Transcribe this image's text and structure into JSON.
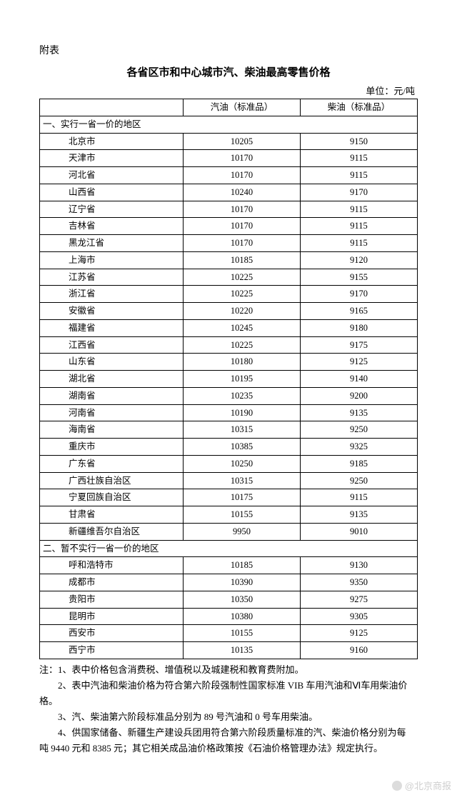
{
  "header": {
    "prefix": "附表",
    "title": "各省区市和中心城市汽、柴油最高零售价格",
    "unit_label": "单位：元/吨"
  },
  "table": {
    "columns": [
      "",
      "汽油（标准品）",
      "柴油（标准品）"
    ],
    "section1_label": "一、实行一省一价的地区",
    "section1_rows": [
      {
        "name": "北京市",
        "gas": "10205",
        "diesel": "9150"
      },
      {
        "name": "天津市",
        "gas": "10170",
        "diesel": "9115"
      },
      {
        "name": "河北省",
        "gas": "10170",
        "diesel": "9115"
      },
      {
        "name": "山西省",
        "gas": "10240",
        "diesel": "9170"
      },
      {
        "name": "辽宁省",
        "gas": "10170",
        "diesel": "9115"
      },
      {
        "name": "吉林省",
        "gas": "10170",
        "diesel": "9115"
      },
      {
        "name": "黑龙江省",
        "gas": "10170",
        "diesel": "9115"
      },
      {
        "name": "上海市",
        "gas": "10185",
        "diesel": "9120"
      },
      {
        "name": "江苏省",
        "gas": "10225",
        "diesel": "9155"
      },
      {
        "name": "浙江省",
        "gas": "10225",
        "diesel": "9170"
      },
      {
        "name": "安徽省",
        "gas": "10220",
        "diesel": "9165"
      },
      {
        "name": "福建省",
        "gas": "10245",
        "diesel": "9180"
      },
      {
        "name": "江西省",
        "gas": "10225",
        "diesel": "9175"
      },
      {
        "name": "山东省",
        "gas": "10180",
        "diesel": "9125"
      },
      {
        "name": "湖北省",
        "gas": "10195",
        "diesel": "9140"
      },
      {
        "name": "湖南省",
        "gas": "10235",
        "diesel": "9200"
      },
      {
        "name": "河南省",
        "gas": "10190",
        "diesel": "9135"
      },
      {
        "name": "海南省",
        "gas": "10315",
        "diesel": "9250"
      },
      {
        "name": "重庆市",
        "gas": "10385",
        "diesel": "9325"
      },
      {
        "name": "广东省",
        "gas": "10250",
        "diesel": "9185"
      },
      {
        "name": "广西壮族自治区",
        "gas": "10315",
        "diesel": "9250"
      },
      {
        "name": "宁夏回族自治区",
        "gas": "10175",
        "diesel": "9115"
      },
      {
        "name": "甘肃省",
        "gas": "10155",
        "diesel": "9135"
      },
      {
        "name": "新疆维吾尔自治区",
        "gas": "9950",
        "diesel": "9010"
      }
    ],
    "section2_label": "二、暂不实行一省一价的地区",
    "section2_rows": [
      {
        "name": "呼和浩特市",
        "gas": "10185",
        "diesel": "9130"
      },
      {
        "name": "成都市",
        "gas": "10390",
        "diesel": "9350"
      },
      {
        "name": "贵阳市",
        "gas": "10350",
        "diesel": "9275"
      },
      {
        "name": "昆明市",
        "gas": "10380",
        "diesel": "9305"
      },
      {
        "name": "西安市",
        "gas": "10155",
        "diesel": "9125"
      },
      {
        "name": "西宁市",
        "gas": "10135",
        "diesel": "9160"
      }
    ]
  },
  "notes": {
    "n1": "注：1、表中价格包含消费税、增值税以及城建税和教育费附加。",
    "n2a": "　　2、表中汽油和柴油价格为符合第六阶段强制性国家标准 VIB 车用汽油和Ⅵ车用柴油价",
    "n2b": "格。",
    "n3": "　　3、汽、柴油第六阶段标准品分别为 89 号汽油和 0 号车用柴油。",
    "n4a": "　　4、供国家储备、新疆生产建设兵团用符合第六阶段质量标准的汽、柴油价格分别为每",
    "n4b": "吨 9440 元和 8385 元；其它相关成品油价格政策按《石油价格管理办法》规定执行。"
  },
  "watermark": "@北京商报",
  "colors": {
    "text": "#000000",
    "border": "#000000",
    "watermark": "#cfcfcf",
    "background": "#ffffff"
  }
}
